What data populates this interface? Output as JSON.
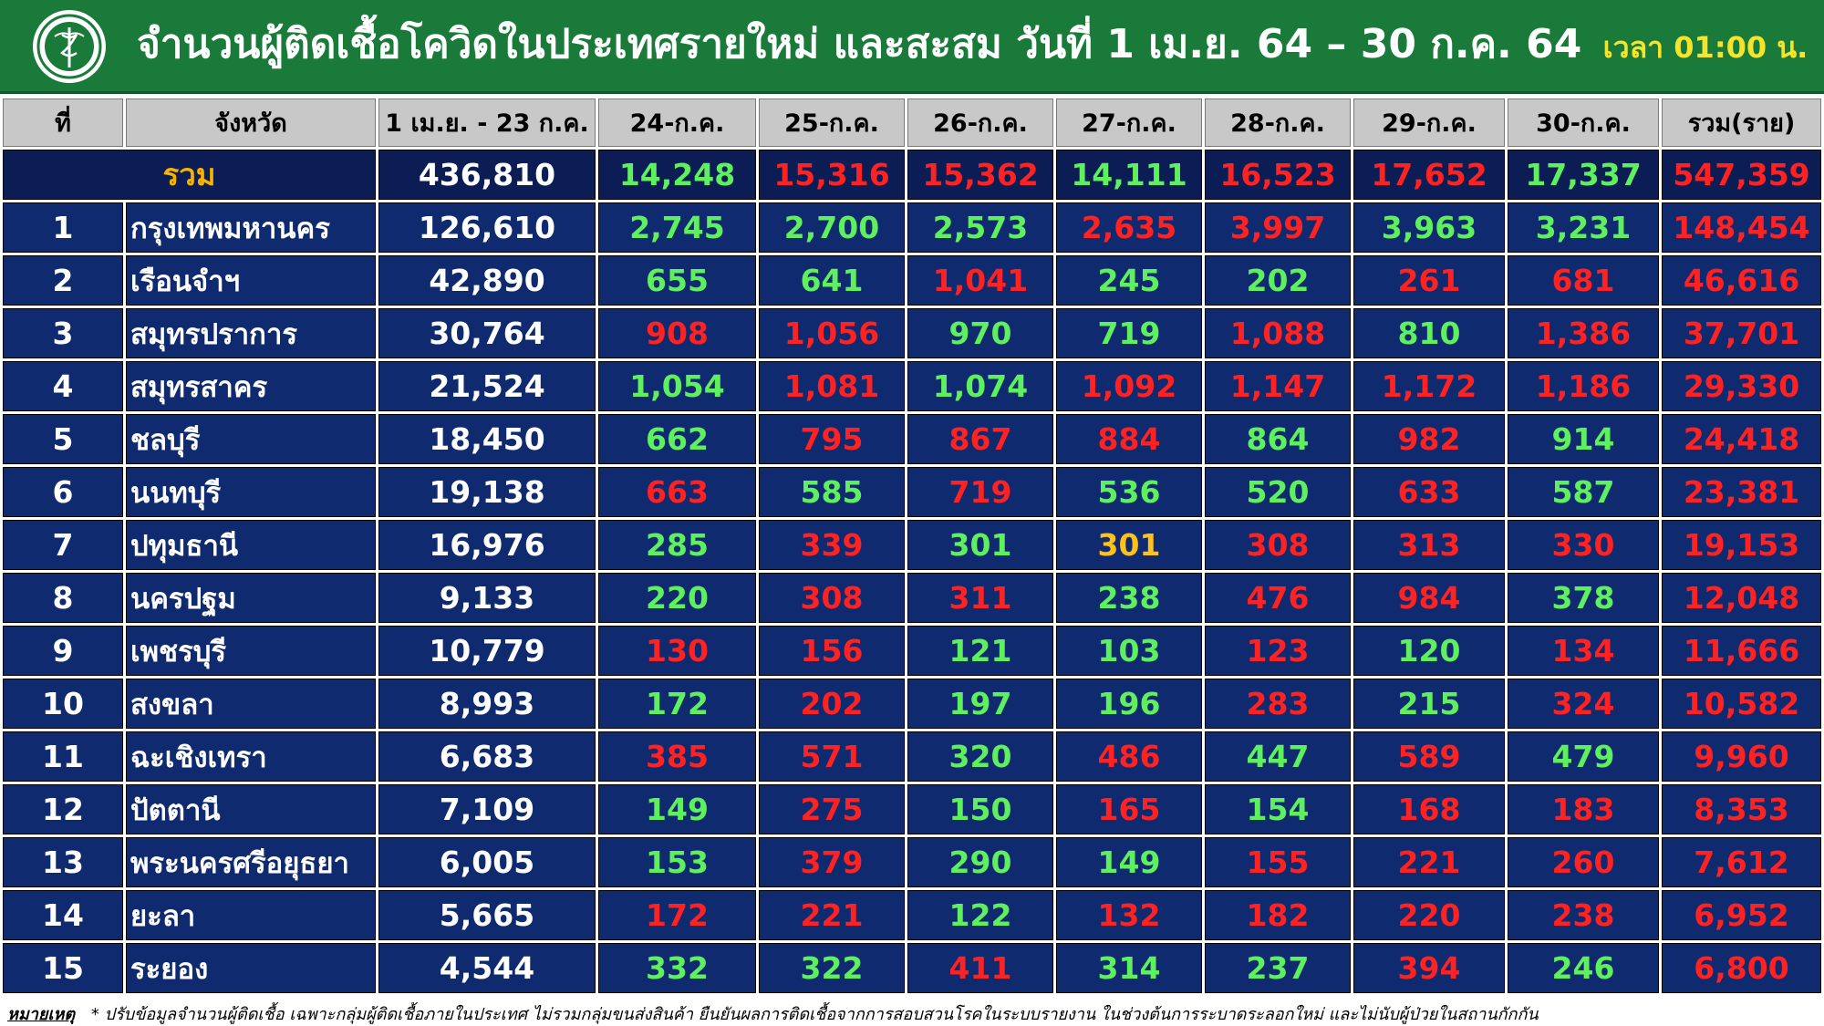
{
  "header": {
    "title": "จำนวนผู้ติดเชื้อโควิดในประเทศรายใหม่ และสะสม วันที่ 1 เม.ย. 64 – 30 ก.ค. 64",
    "time": "เวลา 01:00 น.",
    "background_color": "#1a7a3a",
    "logo_icon": "ministry-of-public-health-seal"
  },
  "table": {
    "headers": [
      "ที่",
      "จังหวัด",
      "1 เม.ย. - 23 ก.ค.",
      "24-ก.ค.",
      "25-ก.ค.",
      "26-ก.ค.",
      "27-ก.ค.",
      "28-ก.ค.",
      "29-ก.ค.",
      "30-ก.ค.",
      "รวม(ราย)"
    ],
    "total": {
      "label": "รวม",
      "base": "436,810",
      "days": [
        {
          "v": "14,248",
          "c": "g"
        },
        {
          "v": "15,316",
          "c": "r"
        },
        {
          "v": "15,362",
          "c": "r"
        },
        {
          "v": "14,111",
          "c": "g"
        },
        {
          "v": "16,523",
          "c": "r"
        },
        {
          "v": "17,652",
          "c": "r"
        },
        {
          "v": "17,337",
          "c": "g"
        }
      ],
      "sum": "547,359"
    },
    "rows": [
      {
        "rank": "1",
        "province": "กรุงเทพมหานคร",
        "base": "126,610",
        "days": [
          {
            "v": "2,745",
            "c": "g"
          },
          {
            "v": "2,700",
            "c": "g"
          },
          {
            "v": "2,573",
            "c": "g"
          },
          {
            "v": "2,635",
            "c": "r"
          },
          {
            "v": "3,997",
            "c": "r"
          },
          {
            "v": "3,963",
            "c": "g"
          },
          {
            "v": "3,231",
            "c": "g"
          }
        ],
        "sum": "148,454"
      },
      {
        "rank": "2",
        "province": "เรือนจำฯ",
        "base": "42,890",
        "days": [
          {
            "v": "655",
            "c": "g"
          },
          {
            "v": "641",
            "c": "g"
          },
          {
            "v": "1,041",
            "c": "r"
          },
          {
            "v": "245",
            "c": "g"
          },
          {
            "v": "202",
            "c": "g"
          },
          {
            "v": "261",
            "c": "r"
          },
          {
            "v": "681",
            "c": "r"
          }
        ],
        "sum": "46,616"
      },
      {
        "rank": "3",
        "province": "สมุทรปราการ",
        "base": "30,764",
        "days": [
          {
            "v": "908",
            "c": "r"
          },
          {
            "v": "1,056",
            "c": "r"
          },
          {
            "v": "970",
            "c": "g"
          },
          {
            "v": "719",
            "c": "g"
          },
          {
            "v": "1,088",
            "c": "r"
          },
          {
            "v": "810",
            "c": "g"
          },
          {
            "v": "1,386",
            "c": "r"
          }
        ],
        "sum": "37,701"
      },
      {
        "rank": "4",
        "province": "สมุทรสาคร",
        "base": "21,524",
        "days": [
          {
            "v": "1,054",
            "c": "g"
          },
          {
            "v": "1,081",
            "c": "r"
          },
          {
            "v": "1,074",
            "c": "g"
          },
          {
            "v": "1,092",
            "c": "r"
          },
          {
            "v": "1,147",
            "c": "r"
          },
          {
            "v": "1,172",
            "c": "r"
          },
          {
            "v": "1,186",
            "c": "r"
          }
        ],
        "sum": "29,330"
      },
      {
        "rank": "5",
        "province": "ชลบุรี",
        "base": "18,450",
        "days": [
          {
            "v": "662",
            "c": "g"
          },
          {
            "v": "795",
            "c": "r"
          },
          {
            "v": "867",
            "c": "r"
          },
          {
            "v": "884",
            "c": "r"
          },
          {
            "v": "864",
            "c": "g"
          },
          {
            "v": "982",
            "c": "r"
          },
          {
            "v": "914",
            "c": "g"
          }
        ],
        "sum": "24,418"
      },
      {
        "rank": "6",
        "province": "นนทบุรี",
        "base": "19,138",
        "days": [
          {
            "v": "663",
            "c": "r"
          },
          {
            "v": "585",
            "c": "g"
          },
          {
            "v": "719",
            "c": "r"
          },
          {
            "v": "536",
            "c": "g"
          },
          {
            "v": "520",
            "c": "g"
          },
          {
            "v": "633",
            "c": "r"
          },
          {
            "v": "587",
            "c": "g"
          }
        ],
        "sum": "23,381"
      },
      {
        "rank": "7",
        "province": "ปทุมธานี",
        "base": "16,976",
        "days": [
          {
            "v": "285",
            "c": "g"
          },
          {
            "v": "339",
            "c": "r"
          },
          {
            "v": "301",
            "c": "g"
          },
          {
            "v": "301",
            "c": "y"
          },
          {
            "v": "308",
            "c": "r"
          },
          {
            "v": "313",
            "c": "r"
          },
          {
            "v": "330",
            "c": "r"
          }
        ],
        "sum": "19,153"
      },
      {
        "rank": "8",
        "province": "นครปฐม",
        "base": "9,133",
        "days": [
          {
            "v": "220",
            "c": "g"
          },
          {
            "v": "308",
            "c": "r"
          },
          {
            "v": "311",
            "c": "r"
          },
          {
            "v": "238",
            "c": "g"
          },
          {
            "v": "476",
            "c": "r"
          },
          {
            "v": "984",
            "c": "r"
          },
          {
            "v": "378",
            "c": "g"
          }
        ],
        "sum": "12,048"
      },
      {
        "rank": "9",
        "province": "เพชรบุรี",
        "base": "10,779",
        "days": [
          {
            "v": "130",
            "c": "r"
          },
          {
            "v": "156",
            "c": "r"
          },
          {
            "v": "121",
            "c": "g"
          },
          {
            "v": "103",
            "c": "g"
          },
          {
            "v": "123",
            "c": "r"
          },
          {
            "v": "120",
            "c": "g"
          },
          {
            "v": "134",
            "c": "r"
          }
        ],
        "sum": "11,666"
      },
      {
        "rank": "10",
        "province": "สงขลา",
        "base": "8,993",
        "days": [
          {
            "v": "172",
            "c": "g"
          },
          {
            "v": "202",
            "c": "r"
          },
          {
            "v": "197",
            "c": "g"
          },
          {
            "v": "196",
            "c": "g"
          },
          {
            "v": "283",
            "c": "r"
          },
          {
            "v": "215",
            "c": "g"
          },
          {
            "v": "324",
            "c": "r"
          }
        ],
        "sum": "10,582"
      },
      {
        "rank": "11",
        "province": "ฉะเชิงเทรา",
        "base": "6,683",
        "days": [
          {
            "v": "385",
            "c": "r"
          },
          {
            "v": "571",
            "c": "r"
          },
          {
            "v": "320",
            "c": "g"
          },
          {
            "v": "486",
            "c": "r"
          },
          {
            "v": "447",
            "c": "g"
          },
          {
            "v": "589",
            "c": "r"
          },
          {
            "v": "479",
            "c": "g"
          }
        ],
        "sum": "9,960"
      },
      {
        "rank": "12",
        "province": "ปัตตานี",
        "base": "7,109",
        "days": [
          {
            "v": "149",
            "c": "g"
          },
          {
            "v": "275",
            "c": "r"
          },
          {
            "v": "150",
            "c": "g"
          },
          {
            "v": "165",
            "c": "r"
          },
          {
            "v": "154",
            "c": "g"
          },
          {
            "v": "168",
            "c": "r"
          },
          {
            "v": "183",
            "c": "r"
          }
        ],
        "sum": "8,353"
      },
      {
        "rank": "13",
        "province": "พระนครศรีอยุธยา",
        "base": "6,005",
        "days": [
          {
            "v": "153",
            "c": "g"
          },
          {
            "v": "379",
            "c": "r"
          },
          {
            "v": "290",
            "c": "g"
          },
          {
            "v": "149",
            "c": "g"
          },
          {
            "v": "155",
            "c": "r"
          },
          {
            "v": "221",
            "c": "r"
          },
          {
            "v": "260",
            "c": "r"
          }
        ],
        "sum": "7,612"
      },
      {
        "rank": "14",
        "province": "ยะลา",
        "base": "5,665",
        "days": [
          {
            "v": "172",
            "c": "r"
          },
          {
            "v": "221",
            "c": "r"
          },
          {
            "v": "122",
            "c": "g"
          },
          {
            "v": "132",
            "c": "r"
          },
          {
            "v": "182",
            "c": "r"
          },
          {
            "v": "220",
            "c": "r"
          },
          {
            "v": "238",
            "c": "r"
          }
        ],
        "sum": "6,952"
      },
      {
        "rank": "15",
        "province": "ระยอง",
        "base": "4,544",
        "days": [
          {
            "v": "332",
            "c": "g"
          },
          {
            "v": "322",
            "c": "g"
          },
          {
            "v": "411",
            "c": "r"
          },
          {
            "v": "314",
            "c": "g"
          },
          {
            "v": "237",
            "c": "g"
          },
          {
            "v": "394",
            "c": "r"
          },
          {
            "v": "246",
            "c": "g"
          }
        ],
        "sum": "6,800"
      }
    ]
  },
  "footnote": {
    "label": "หมายเหตุ",
    "text": "* ปรับข้อมูลจำนวนผู้ติดเชื้อ เฉพาะกลุ่มผู้ติดเชื้อภายในประเทศ ไม่รวมกลุ่มขนส่งสินค้า ยืนยันผลการติดเชื้อจากการสอบสวนโรคในระบบรายงาน ในช่วงต้นการระบาดระลอกใหม่ และไม่นับผู้ป่วยในสถานกักกัน"
  },
  "colors": {
    "header_green": "#1a7a3a",
    "cell_navy": "#0f2a6e",
    "increase_red": "#ff2222",
    "decrease_green": "#5ff05f",
    "equal_yellow": "#ffc21a",
    "total_label_gold": "#f5b400",
    "time_yellow": "#f5e52a"
  }
}
